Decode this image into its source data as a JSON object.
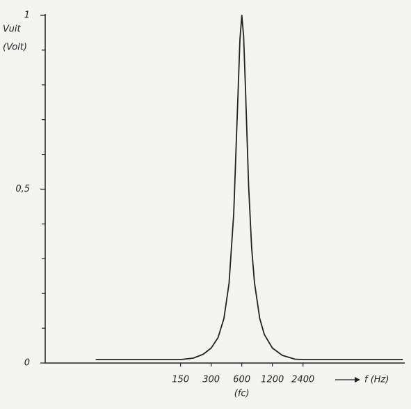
{
  "chart_data": {
    "type": "line",
    "ylabel": [
      "Vuit",
      "(Volt)"
    ],
    "xlabel": "f (Hz)",
    "annotations": [
      {
        "text": "(fc)",
        "x": 600
      }
    ],
    "x": [
      22,
      100,
      150,
      200,
      250,
      300,
      350,
      400,
      450,
      500,
      550,
      575,
      600,
      625,
      650,
      700,
      750,
      800,
      900,
      1000,
      1200,
      1500,
      2000,
      2400,
      3000,
      23000
    ],
    "values": [
      0.01,
      0.01,
      0.01,
      0.014,
      0.025,
      0.043,
      0.073,
      0.128,
      0.23,
      0.43,
      0.77,
      0.93,
      1,
      0.94,
      0.8,
      0.51,
      0.33,
      0.23,
      0.128,
      0.082,
      0.043,
      0.022,
      0.011,
      0.01,
      0.01,
      0.01
    ],
    "color": "#222222",
    "xscale": "log",
    "xlim": [
      7,
      24000
    ],
    "xticks": [
      150,
      300,
      600,
      1200,
      2400
    ],
    "ylim": [
      0,
      1
    ],
    "yticks": [
      0,
      {
        "value": 0.5,
        "label": "0,5"
      },
      1
    ],
    "yticks_minor": [
      0.1,
      0.2,
      0.3,
      0.4,
      0.6,
      0.7,
      0.8,
      0.9
    ]
  }
}
